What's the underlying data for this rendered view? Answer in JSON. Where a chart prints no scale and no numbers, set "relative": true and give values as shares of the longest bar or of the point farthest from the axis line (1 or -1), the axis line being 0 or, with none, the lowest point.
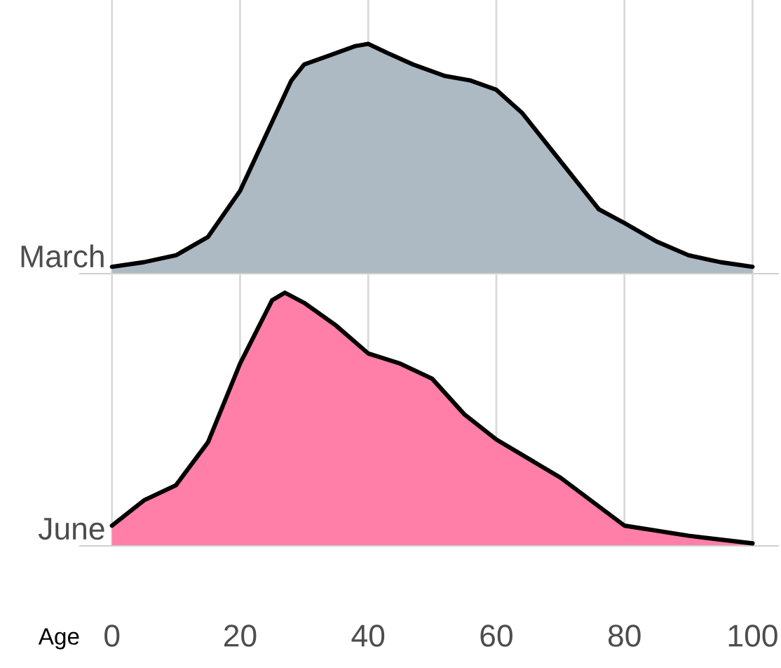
{
  "chart_data": [
    {
      "type": "area",
      "relative": true,
      "grid": "x",
      "tick_labels": false,
      "xlim": [
        -5,
        104
      ],
      "xticks": [
        0,
        20,
        40,
        60,
        80,
        100
      ],
      "series": [
        {
          "name": "March",
          "color": "#adbac3",
          "x": [
            0,
            5,
            10,
            15,
            20,
            25,
            28,
            30,
            34,
            38,
            40,
            43,
            47,
            52,
            56,
            60,
            64,
            70,
            76,
            80,
            85,
            90,
            95,
            100
          ],
          "values": [
            0.03,
            0.05,
            0.08,
            0.16,
            0.36,
            0.66,
            0.84,
            0.91,
            0.95,
            0.99,
            1.0,
            0.96,
            0.91,
            0.86,
            0.84,
            0.8,
            0.7,
            0.49,
            0.28,
            0.22,
            0.14,
            0.08,
            0.05,
            0.03
          ]
        }
      ]
    },
    {
      "type": "area",
      "relative": true,
      "grid": "x",
      "tick_labels": "x",
      "xlabel": "Age",
      "xlim": [
        -5,
        104
      ],
      "xticks": [
        0,
        20,
        40,
        60,
        80,
        100
      ],
      "series": [
        {
          "name": "June",
          "color": "#ff7fa8",
          "x": [
            0,
            5,
            10,
            15,
            20,
            25,
            27,
            30,
            35,
            40,
            45,
            50,
            55,
            60,
            70,
            80,
            85,
            90,
            100
          ],
          "values": [
            0.08,
            0.18,
            0.24,
            0.41,
            0.72,
            0.97,
            1.0,
            0.96,
            0.87,
            0.76,
            0.72,
            0.66,
            0.52,
            0.42,
            0.27,
            0.08,
            0.06,
            0.04,
            0.01
          ]
        }
      ]
    }
  ]
}
